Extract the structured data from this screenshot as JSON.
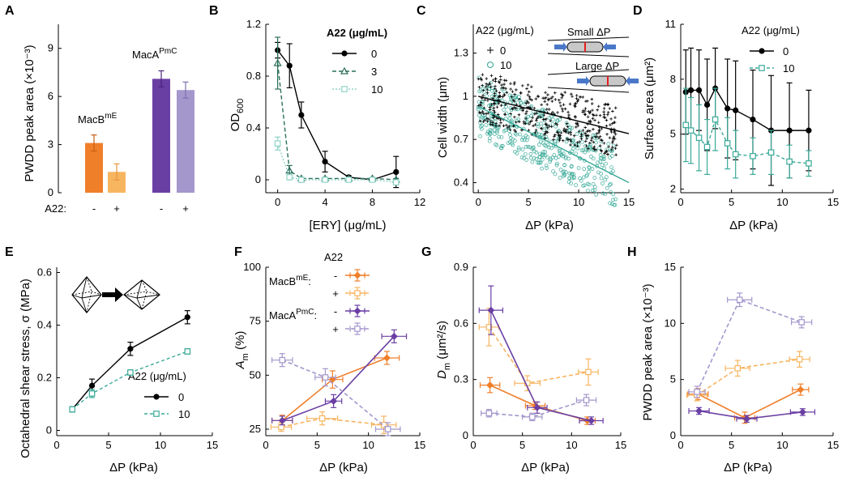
{
  "colors": {
    "black": "#000000",
    "teal": "#3aaa98",
    "teal_light": "#8fd3c6",
    "orange": "#f07f2a",
    "orange_light": "#f7b560",
    "purple": "#6a3fa4",
    "purple_light": "#a497cc"
  },
  "panels": {
    "A": {
      "label": "A",
      "ylabel": "PWDD peak area (×10⁻³)",
      "a22_label": "A22:",
      "signs": [
        "-",
        "+",
        "-",
        "+"
      ],
      "group_labels": [
        {
          "base": "MacB",
          "sup": "mE"
        },
        {
          "base": "MacA",
          "sup": "PmC"
        }
      ],
      "yticks": [
        "0",
        "3",
        "6",
        "9"
      ]
    },
    "B": {
      "label": "B",
      "ylabel": "OD",
      "ylabel_sub": "600",
      "xlabel": "[ERY] (μg/mL)",
      "legend_title": "A22 (μg/mL)",
      "legend": [
        "0",
        "3",
        "10"
      ],
      "xticks": [
        "0",
        "4",
        "8",
        "12"
      ],
      "yticks": [
        "0",
        "0.4",
        "0.8",
        "1.2"
      ]
    },
    "C": {
      "label": "C",
      "ylabel": "Cell width (μm)",
      "xlabel": "ΔP (kPa)",
      "legend_title": "A22 (μg/mL)",
      "legend": [
        "0",
        "10"
      ],
      "legend_markers": [
        "+",
        "○"
      ],
      "small_label": "Small ΔP",
      "large_label": "Large ΔP",
      "xticks": [
        "0",
        "5",
        "10",
        "15"
      ],
      "yticks": [
        "0.4",
        "0.7",
        "1",
        "1.3"
      ]
    },
    "D": {
      "label": "D",
      "ylabel": "Surface area (μm²)",
      "xlabel": "ΔP (kPa)",
      "legend_title": "A22 (μg/mL)",
      "legend": [
        "0",
        "10"
      ],
      "xticks": [
        "0",
        "5",
        "10",
        "15"
      ],
      "yticks": [
        "2",
        "5",
        "8",
        "11"
      ]
    },
    "E": {
      "label": "E",
      "ylabel": "Octahedral shear stress, σ (MPa)",
      "xlabel": "ΔP (kPa)",
      "legend_title": "A22 (μg/mL)",
      "legend": [
        "0",
        "10"
      ],
      "xticks": [
        "0",
        "5",
        "10",
        "15"
      ],
      "yticks": [
        "0",
        "0.2",
        "0.4",
        "0.6"
      ]
    },
    "F": {
      "label": "F",
      "ylabel": "A",
      "ylabel_sub": "m",
      "ylabel_rest": " (%)",
      "xlabel": "ΔP (kPa)",
      "legend_title": "A22",
      "legend_groups": [
        {
          "base": "MacB",
          "sup": "mE"
        },
        {
          "base": "MacA",
          "sup": "PmC"
        }
      ],
      "legend_signs": [
        "-",
        "+",
        "-",
        "+"
      ],
      "xticks": [
        "0",
        "5",
        "10",
        "15"
      ],
      "yticks": [
        "25",
        "50",
        "75",
        "100"
      ]
    },
    "G": {
      "label": "G",
      "ylabel": "D",
      "ylabel_sub": "m",
      "ylabel_rest": " (μm²/s)",
      "xlabel": "ΔP (kPa)",
      "xticks": [
        "0",
        "5",
        "10",
        "15"
      ],
      "yticks": [
        "0",
        "0.3",
        "0.6",
        "0.9"
      ]
    },
    "H": {
      "label": "H",
      "ylabel": "PWDD peak area (×10⁻³)",
      "xlabel": "ΔP (kPa)",
      "xticks": [
        "0",
        "5",
        "10",
        "15"
      ],
      "yticks": [
        "0",
        "5",
        "10",
        "15"
      ]
    }
  },
  "chart_data": [
    {
      "panel": "A",
      "type": "bar",
      "categories": [
        "MacB(mE) -",
        "MacB(mE) +",
        "MacA(PmC) -",
        "MacA(PmC) +"
      ],
      "values": [
        3.1,
        1.3,
        7.1,
        6.4
      ],
      "errors": [
        0.5,
        0.5,
        0.5,
        0.5
      ],
      "ylim": [
        0,
        10.5
      ]
    },
    {
      "panel": "B",
      "type": "line",
      "xlim": [
        -1,
        12
      ],
      "ylim": [
        -0.1,
        1.2
      ],
      "series": [
        {
          "name": "0",
          "x": [
            0,
            1,
            2,
            4,
            6,
            8,
            10
          ],
          "y": [
            1.0,
            0.88,
            0.5,
            0.14,
            0.02,
            0.0,
            0.06
          ],
          "err": [
            0.06,
            0.17,
            0.1,
            0.08,
            0.01,
            0.01,
            0.12
          ]
        },
        {
          "name": "3",
          "x": [
            0,
            1,
            2,
            4,
            6,
            8,
            10
          ],
          "y": [
            0.9,
            0.07,
            0.01,
            0.01,
            0.01,
            0.01,
            0.0
          ],
          "err": [
            0.2,
            0.04,
            0.01,
            0.01,
            0.01,
            0.01,
            0.01
          ]
        },
        {
          "name": "10",
          "x": [
            0,
            1,
            2,
            4,
            6,
            8,
            10
          ],
          "y": [
            0.28,
            0.02,
            0.0,
            0.0,
            0.0,
            0.0,
            -0.02
          ],
          "err": [
            0.05,
            0.02,
            0.01,
            0.01,
            0.01,
            0.01,
            0.01
          ]
        }
      ]
    },
    {
      "panel": "C",
      "type": "scatter",
      "xlim": [
        -0.5,
        15
      ],
      "ylim": [
        0.33,
        1.5
      ],
      "series": [
        {
          "name": "0",
          "fit_x": [
            0,
            15
          ],
          "fit_y": [
            1.0,
            0.74
          ]
        },
        {
          "name": "10",
          "fit_x": [
            0,
            15
          ],
          "fit_y": [
            0.93,
            0.4
          ]
        }
      ]
    },
    {
      "panel": "D",
      "type": "line",
      "xlim": [
        0,
        15
      ],
      "ylim": [
        1.8,
        11
      ],
      "series": [
        {
          "name": "0",
          "x": [
            0.5,
            1.0,
            1.8,
            2.6,
            3.4,
            4.6,
            5.4,
            7.1,
            8.9,
            10.7,
            12.6
          ],
          "y": [
            7.3,
            7.4,
            7.4,
            6.6,
            7.5,
            6.4,
            6.3,
            5.8,
            5.2,
            5.2,
            5.2
          ],
          "err": [
            2.3,
            2.3,
            2.2,
            2.5,
            2.2,
            2.7,
            2.7,
            2.7,
            3.0,
            2.6,
            2.2
          ]
        },
        {
          "name": "10",
          "x": [
            0.5,
            1.0,
            1.8,
            2.6,
            3.4,
            4.6,
            5.4,
            7.1,
            8.9,
            10.7,
            12.6
          ],
          "y": [
            5.5,
            5.2,
            4.8,
            4.3,
            5.8,
            4.5,
            3.9,
            3.8,
            4.0,
            3.5,
            3.4
          ],
          "err": [
            2.0,
            1.8,
            1.8,
            1.5,
            1.7,
            1.4,
            1.3,
            1.0,
            1.2,
            0.9,
            0.7
          ]
        }
      ]
    },
    {
      "panel": "E",
      "type": "line",
      "xlim": [
        0,
        15
      ],
      "ylim": [
        -0.02,
        0.62
      ],
      "series": [
        {
          "name": "0",
          "x": [
            1.5,
            3.4,
            7.1,
            12.6
          ],
          "y": [
            0.08,
            0.17,
            0.31,
            0.43
          ],
          "err": [
            0.01,
            0.025,
            0.025,
            0.025
          ]
        },
        {
          "name": "10",
          "x": [
            1.5,
            3.4,
            7.1,
            12.6
          ],
          "y": [
            0.08,
            0.14,
            0.22,
            0.3
          ],
          "err": [
            0.01,
            0.015,
            0.01,
            0.01
          ]
        }
      ]
    },
    {
      "panel": "F",
      "type": "line",
      "xlim": [
        0,
        15
      ],
      "ylim": [
        22,
        100
      ],
      "series": [
        {
          "name": "MacB mE -",
          "x": [
            1.6,
            6.5,
            11.8
          ],
          "y": [
            29,
            48,
            58
          ],
          "xerr": [
            1.0,
            1.0,
            1.2
          ],
          "yerr": [
            2.5,
            4,
            3
          ]
        },
        {
          "name": "MacB mE +",
          "x": [
            1.5,
            5.5,
            11.5
          ],
          "y": [
            26,
            30,
            27
          ],
          "xerr": [
            1.0,
            1.5,
            1.2
          ],
          "yerr": [
            2,
            3,
            4
          ]
        },
        {
          "name": "MacA PmC -",
          "x": [
            1.6,
            6.6,
            12.5
          ],
          "y": [
            29,
            38,
            68
          ],
          "xerr": [
            1.0,
            0.8,
            1.2
          ],
          "yerr": [
            2,
            3,
            3
          ]
        },
        {
          "name": "MacA PmC +",
          "x": [
            1.6,
            5.8,
            11.9
          ],
          "y": [
            57,
            49,
            25
          ],
          "xerr": [
            1.0,
            1.0,
            1.2
          ],
          "yerr": [
            3,
            4,
            3
          ]
        }
      ]
    },
    {
      "panel": "G",
      "type": "line",
      "xlim": [
        0,
        15
      ],
      "ylim": [
        0,
        0.9
      ],
      "series": [
        {
          "name": "MacB mE -",
          "x": [
            1.7,
            6.3,
            11.6
          ],
          "y": [
            0.27,
            0.16,
            0.08
          ],
          "xerr": [
            1.0,
            1.0,
            0.8
          ],
          "yerr": [
            0.04,
            0.02,
            0.02
          ]
        },
        {
          "name": "MacB mE +",
          "x": [
            1.6,
            5.5,
            11.7
          ],
          "y": [
            0.58,
            0.28,
            0.34
          ],
          "xerr": [
            1.0,
            1.3,
            1.0
          ],
          "yerr": [
            0.1,
            0.04,
            0.07
          ]
        },
        {
          "name": "MacA PmC -",
          "x": [
            1.8,
            6.5,
            12.0
          ],
          "y": [
            0.67,
            0.15,
            0.08
          ],
          "xerr": [
            1.2,
            1.0,
            1.2
          ],
          "yerr": [
            0.13,
            0.03,
            0.02
          ]
        },
        {
          "name": "MacA PmC +",
          "x": [
            1.6,
            6.0,
            11.5
          ],
          "y": [
            0.12,
            0.1,
            0.19
          ],
          "xerr": [
            0.8,
            1.0,
            1.0
          ],
          "yerr": [
            0.02,
            0.02,
            0.03
          ]
        }
      ]
    },
    {
      "panel": "H",
      "type": "line",
      "xlim": [
        0,
        15
      ],
      "ylim": [
        0,
        15
      ],
      "series": [
        {
          "name": "MacB mE -",
          "x": [
            1.7,
            6.3,
            11.8
          ],
          "y": [
            3.7,
            1.6,
            4.1
          ],
          "xerr": [
            1.0,
            1.0,
            0.8
          ],
          "yerr": [
            0.5,
            0.5,
            0.5
          ]
        },
        {
          "name": "MacB mE +",
          "x": [
            1.6,
            5.6,
            11.7
          ],
          "y": [
            3.6,
            6.0,
            6.8
          ],
          "xerr": [
            1.0,
            1.2,
            1.0
          ],
          "yerr": [
            0.5,
            0.7,
            0.7
          ]
        },
        {
          "name": "MacA PmC -",
          "x": [
            1.8,
            6.5,
            12.0
          ],
          "y": [
            2.2,
            1.5,
            2.1
          ],
          "xerr": [
            1.0,
            1.0,
            1.2
          ],
          "yerr": [
            0.3,
            0.3,
            0.3
          ]
        },
        {
          "name": "MacA PmC +",
          "x": [
            1.6,
            5.8,
            11.9
          ],
          "y": [
            3.9,
            12.1,
            10.1
          ],
          "xerr": [
            0.8,
            1.2,
            1.0
          ],
          "yerr": [
            0.5,
            0.6,
            0.5
          ]
        }
      ]
    }
  ]
}
